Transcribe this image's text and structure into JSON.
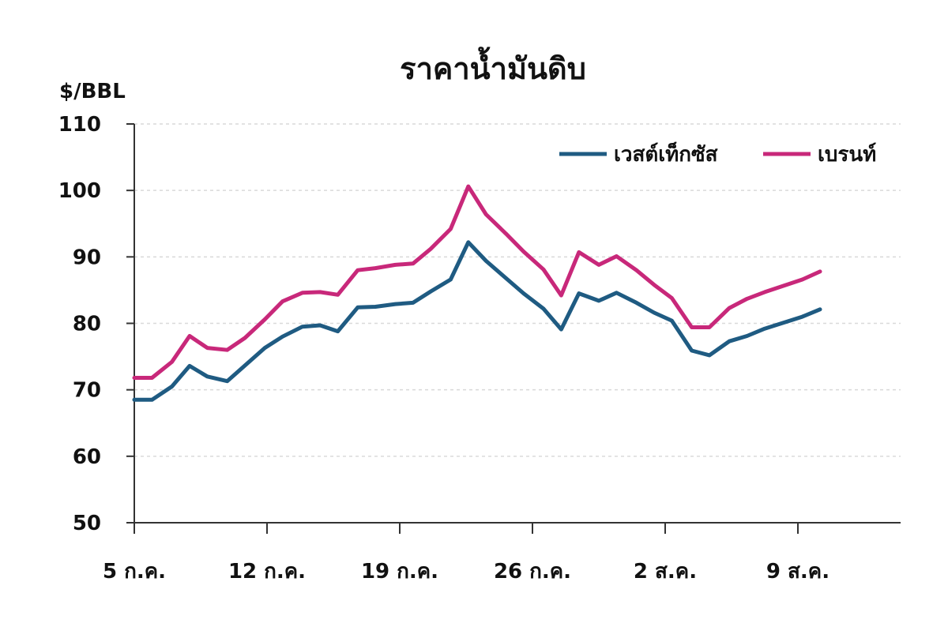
{
  "chart_data": {
    "type": "line",
    "title": "ราคาน้ำมันดิบ",
    "ylabel": "$/BBL",
    "xlabel": "",
    "ylim": [
      50,
      110
    ],
    "yticks": [
      50,
      60,
      70,
      80,
      90,
      100,
      110
    ],
    "grid": true,
    "legend_position": "top-right",
    "xlim": [
      0,
      34
    ],
    "xticks": [
      {
        "x": 0,
        "label": "5 ก.ค."
      },
      {
        "x": 6,
        "label": "12 ก.ค."
      },
      {
        "x": 12,
        "label": "19 ก.ค."
      },
      {
        "x": 18,
        "label": "26 ก.ค."
      },
      {
        "x": 24,
        "label": "2 ส.ค."
      },
      {
        "x": 30,
        "label": "9 ส.ค."
      }
    ],
    "series": [
      {
        "name": "เวสต์เท็กซัส",
        "color": "#1f5b82",
        "x": [
          0,
          0.8,
          1.7,
          2.5,
          3.3,
          4.2,
          5.9,
          6.7,
          7.6,
          8.4,
          9.2,
          10.1,
          10.9,
          11.8,
          12.6,
          13.4,
          14.3,
          15.1,
          15.9,
          16.8,
          17.6,
          18.5,
          19.3,
          20.1,
          21.0,
          21.8,
          22.7,
          23.5,
          24.3,
          25.2,
          26.0,
          26.9,
          27.7,
          28.5,
          30.2,
          31.0
        ],
        "values": [
          68.5,
          68.5,
          70.5,
          73.6,
          72.0,
          71.3,
          76.3,
          78.0,
          79.5,
          79.7,
          78.8,
          82.4,
          82.5,
          82.9,
          83.1,
          84.8,
          86.6,
          92.2,
          89.4,
          86.8,
          84.5,
          82.2,
          79.1,
          84.5,
          83.4,
          84.6,
          83.1,
          81.6,
          80.4,
          75.9,
          75.2,
          77.3,
          78.1,
          79.2,
          81.0,
          82.1
        ]
      },
      {
        "name": "เบรนท์",
        "color": "#c8287a",
        "x": [
          0,
          0.8,
          1.7,
          2.5,
          3.3,
          4.2,
          5.0,
          5.9,
          6.7,
          7.6,
          8.4,
          9.2,
          10.1,
          10.9,
          11.8,
          12.6,
          13.4,
          14.3,
          15.1,
          15.9,
          16.8,
          17.6,
          18.5,
          19.3,
          20.1,
          21.0,
          21.8,
          22.7,
          23.5,
          24.3,
          25.2,
          26.0,
          26.9,
          27.7,
          28.5,
          30.2,
          31.0
        ],
        "values": [
          71.8,
          71.8,
          74.2,
          78.1,
          76.3,
          76.0,
          77.8,
          80.6,
          83.3,
          84.6,
          84.7,
          84.3,
          88.0,
          88.3,
          88.8,
          89.0,
          91.2,
          94.2,
          100.6,
          96.4,
          93.5,
          90.8,
          88.1,
          84.2,
          90.7,
          88.8,
          90.1,
          88.0,
          85.8,
          83.8,
          79.4,
          79.4,
          82.3,
          83.7,
          84.7,
          86.6,
          87.8
        ]
      }
    ]
  }
}
